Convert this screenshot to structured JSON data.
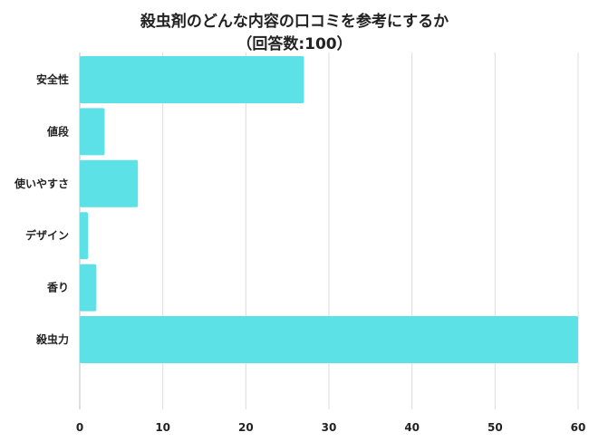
{
  "title": "殺虫剤のどんな内容の口コミを参考にするか",
  "subtitle": "（回答数:100）",
  "chart_data": {
    "type": "bar",
    "orientation": "horizontal",
    "title": "殺虫剤のどんな内容の口コミを参考にするか",
    "subtitle": "（回答数:100）",
    "categories": [
      "安全性",
      "値段",
      "使いやすさ",
      "デザイン",
      "香り",
      "殺虫力"
    ],
    "values": [
      27,
      3,
      7,
      1,
      2,
      60
    ],
    "xlim": [
      0,
      60
    ],
    "xticks": [
      0,
      10,
      20,
      30,
      40,
      50,
      60
    ],
    "grid": true,
    "bar_color": "#5ce1e6",
    "legend": "none"
  }
}
